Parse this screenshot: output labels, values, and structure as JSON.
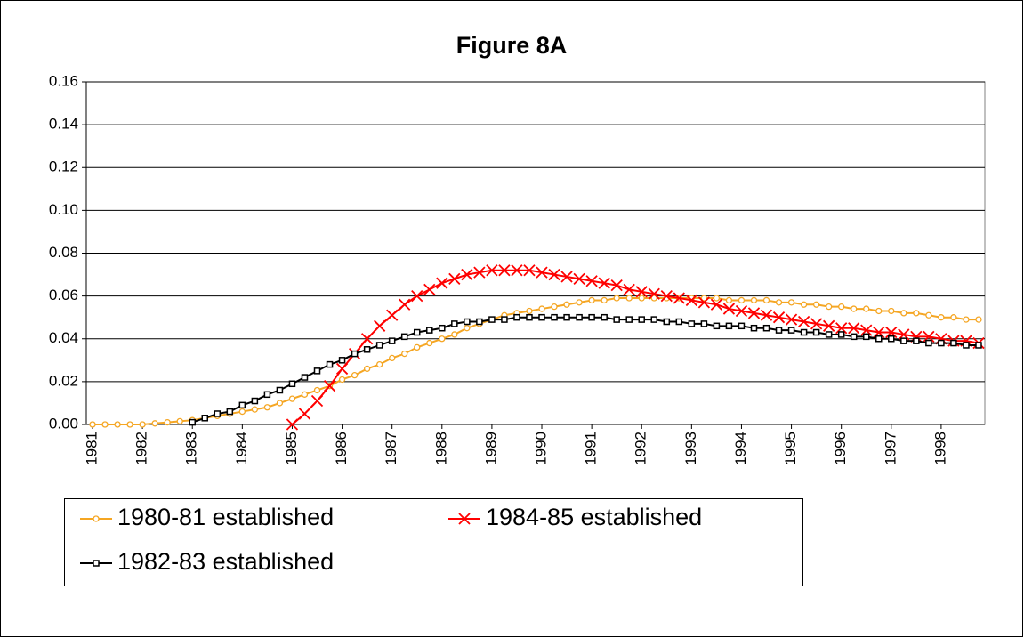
{
  "chart_data": {
    "type": "line",
    "title": "Figure 8A",
    "categories": [
      "1981",
      null,
      null,
      null,
      "1982",
      null,
      null,
      null,
      "1983",
      null,
      null,
      null,
      "1984",
      null,
      null,
      null,
      "1985",
      null,
      null,
      null,
      "1986",
      null,
      null,
      null,
      "1987",
      null,
      null,
      null,
      "1988",
      null,
      null,
      null,
      "1989",
      null,
      null,
      null,
      "1990",
      null,
      null,
      null,
      "1991",
      null,
      null,
      null,
      "1992",
      null,
      null,
      null,
      "1993",
      null,
      null,
      null,
      "1994",
      null,
      null,
      null,
      "1995",
      null,
      null,
      null,
      "1996",
      null,
      null,
      null,
      "1997",
      null,
      null,
      null,
      "1998",
      null,
      null,
      null
    ],
    "series": [
      {
        "name": "1980-81 established",
        "color": "#f5a623",
        "marker": "circle",
        "values": [
          0,
          0,
          0,
          0,
          0,
          0.0005,
          0.001,
          0.0015,
          0.002,
          0.003,
          0.004,
          0.005,
          0.006,
          0.007,
          0.008,
          0.01,
          0.012,
          0.014,
          0.016,
          0.018,
          0.021,
          0.023,
          0.026,
          0.028,
          0.031,
          0.033,
          0.036,
          0.038,
          0.04,
          0.042,
          0.045,
          0.047,
          0.049,
          0.051,
          0.052,
          0.053,
          0.054,
          0.055,
          0.056,
          0.057,
          0.058,
          0.058,
          0.059,
          0.059,
          0.059,
          0.059,
          0.059,
          0.059,
          0.059,
          0.059,
          0.059,
          0.058,
          0.058,
          0.058,
          0.058,
          0.057,
          0.057,
          0.056,
          0.056,
          0.055,
          0.055,
          0.054,
          0.054,
          0.053,
          0.053,
          0.052,
          0.052,
          0.051,
          0.05,
          0.05,
          0.049,
          0.049
        ]
      },
      {
        "name": "1984-85 established",
        "color": "#ff0000",
        "marker": "x",
        "values": [
          null,
          null,
          null,
          null,
          null,
          null,
          null,
          null,
          null,
          null,
          null,
          null,
          null,
          null,
          null,
          null,
          0,
          0.005,
          0.011,
          0.018,
          0.026,
          0.033,
          0.04,
          0.046,
          0.051,
          0.056,
          0.06,
          0.063,
          0.066,
          0.068,
          0.07,
          0.071,
          0.072,
          0.072,
          0.072,
          0.072,
          0.071,
          0.07,
          0.069,
          0.068,
          0.067,
          0.066,
          0.065,
          0.063,
          0.062,
          0.061,
          0.06,
          0.059,
          0.058,
          0.057,
          0.056,
          0.054,
          0.053,
          0.052,
          0.051,
          0.05,
          0.049,
          0.048,
          0.047,
          0.046,
          0.045,
          0.045,
          0.044,
          0.043,
          0.043,
          0.042,
          0.041,
          0.041,
          0.04,
          0.039,
          0.039,
          0.038
        ]
      },
      {
        "name": "1982-83 established",
        "color": "#000000",
        "marker": "square",
        "values": [
          null,
          null,
          null,
          null,
          null,
          null,
          null,
          null,
          0.001,
          0.003,
          0.005,
          0.006,
          0.009,
          0.011,
          0.014,
          0.016,
          0.019,
          0.022,
          0.025,
          0.028,
          0.03,
          0.033,
          0.035,
          0.037,
          0.039,
          0.041,
          0.043,
          0.044,
          0.045,
          0.047,
          0.048,
          0.048,
          0.049,
          0.049,
          0.05,
          0.05,
          0.05,
          0.05,
          0.05,
          0.05,
          0.05,
          0.05,
          0.049,
          0.049,
          0.049,
          0.049,
          0.048,
          0.048,
          0.047,
          0.047,
          0.046,
          0.046,
          0.046,
          0.045,
          0.045,
          0.044,
          0.044,
          0.043,
          0.043,
          0.042,
          0.042,
          0.041,
          0.041,
          0.04,
          0.04,
          0.039,
          0.039,
          0.038,
          0.038,
          0.038,
          0.037,
          0.037
        ]
      }
    ],
    "ylim": [
      0,
      0.16
    ],
    "yticks": [
      {
        "value": 0,
        "label": "0.00"
      },
      {
        "value": 0.02,
        "label": "0.02"
      },
      {
        "value": 0.04,
        "label": "0.04"
      },
      {
        "value": 0.06,
        "label": "0.06"
      },
      {
        "value": 0.08,
        "label": "0.08"
      },
      {
        "value": 0.1,
        "label": "0.10"
      },
      {
        "value": 0.12,
        "label": "0.12"
      },
      {
        "value": 0.14,
        "label": "0.14"
      },
      {
        "value": 0.16,
        "label": "0.16"
      }
    ],
    "grid": true,
    "legend": "bottom"
  }
}
